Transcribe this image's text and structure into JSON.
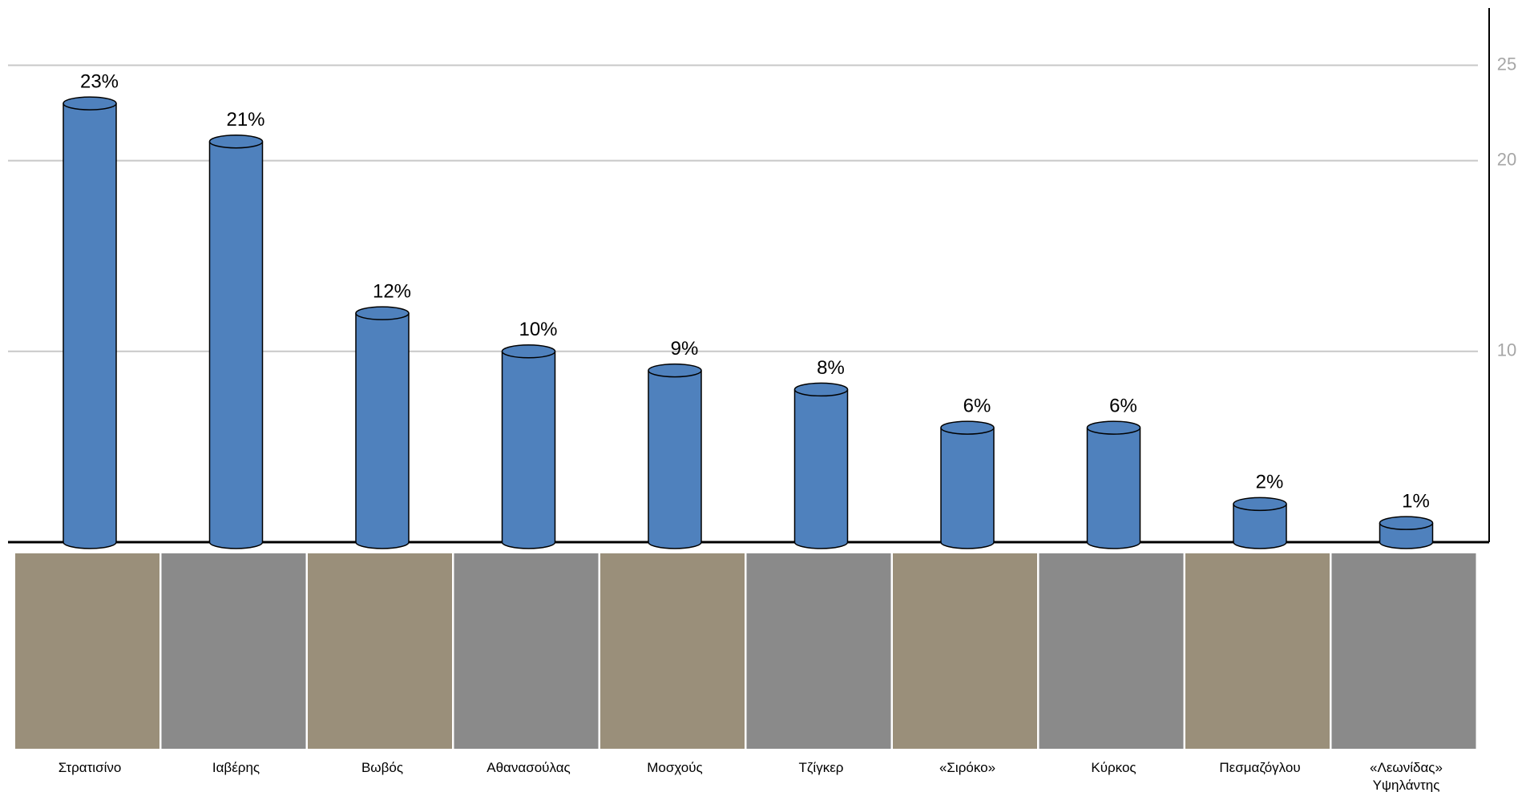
{
  "chart_data": {
    "type": "bar",
    "style": "cylinder",
    "categories": [
      "Στρατισίνο",
      "Ιαβέρης",
      "Βωβός",
      "Αθανασούλας",
      "Μοσχούς",
      "Τζίγκερ",
      "«Σιρόκο»",
      "Κύρκος",
      "Πεσμαζόγλου",
      "«Λεωνίδας» Υψηλάντης"
    ],
    "values": [
      23,
      21,
      12,
      10,
      9,
      8,
      6,
      6,
      2,
      1
    ],
    "value_labels": [
      "23%",
      "21%",
      "12%",
      "10%",
      "9%",
      "8%",
      "6%",
      "6%",
      "2%",
      "1%"
    ],
    "color": "#4f81bd",
    "ylim": [
      0,
      28
    ],
    "yticks": [
      10,
      20,
      25
    ],
    "grid": true,
    "y_axis_side": "right"
  }
}
